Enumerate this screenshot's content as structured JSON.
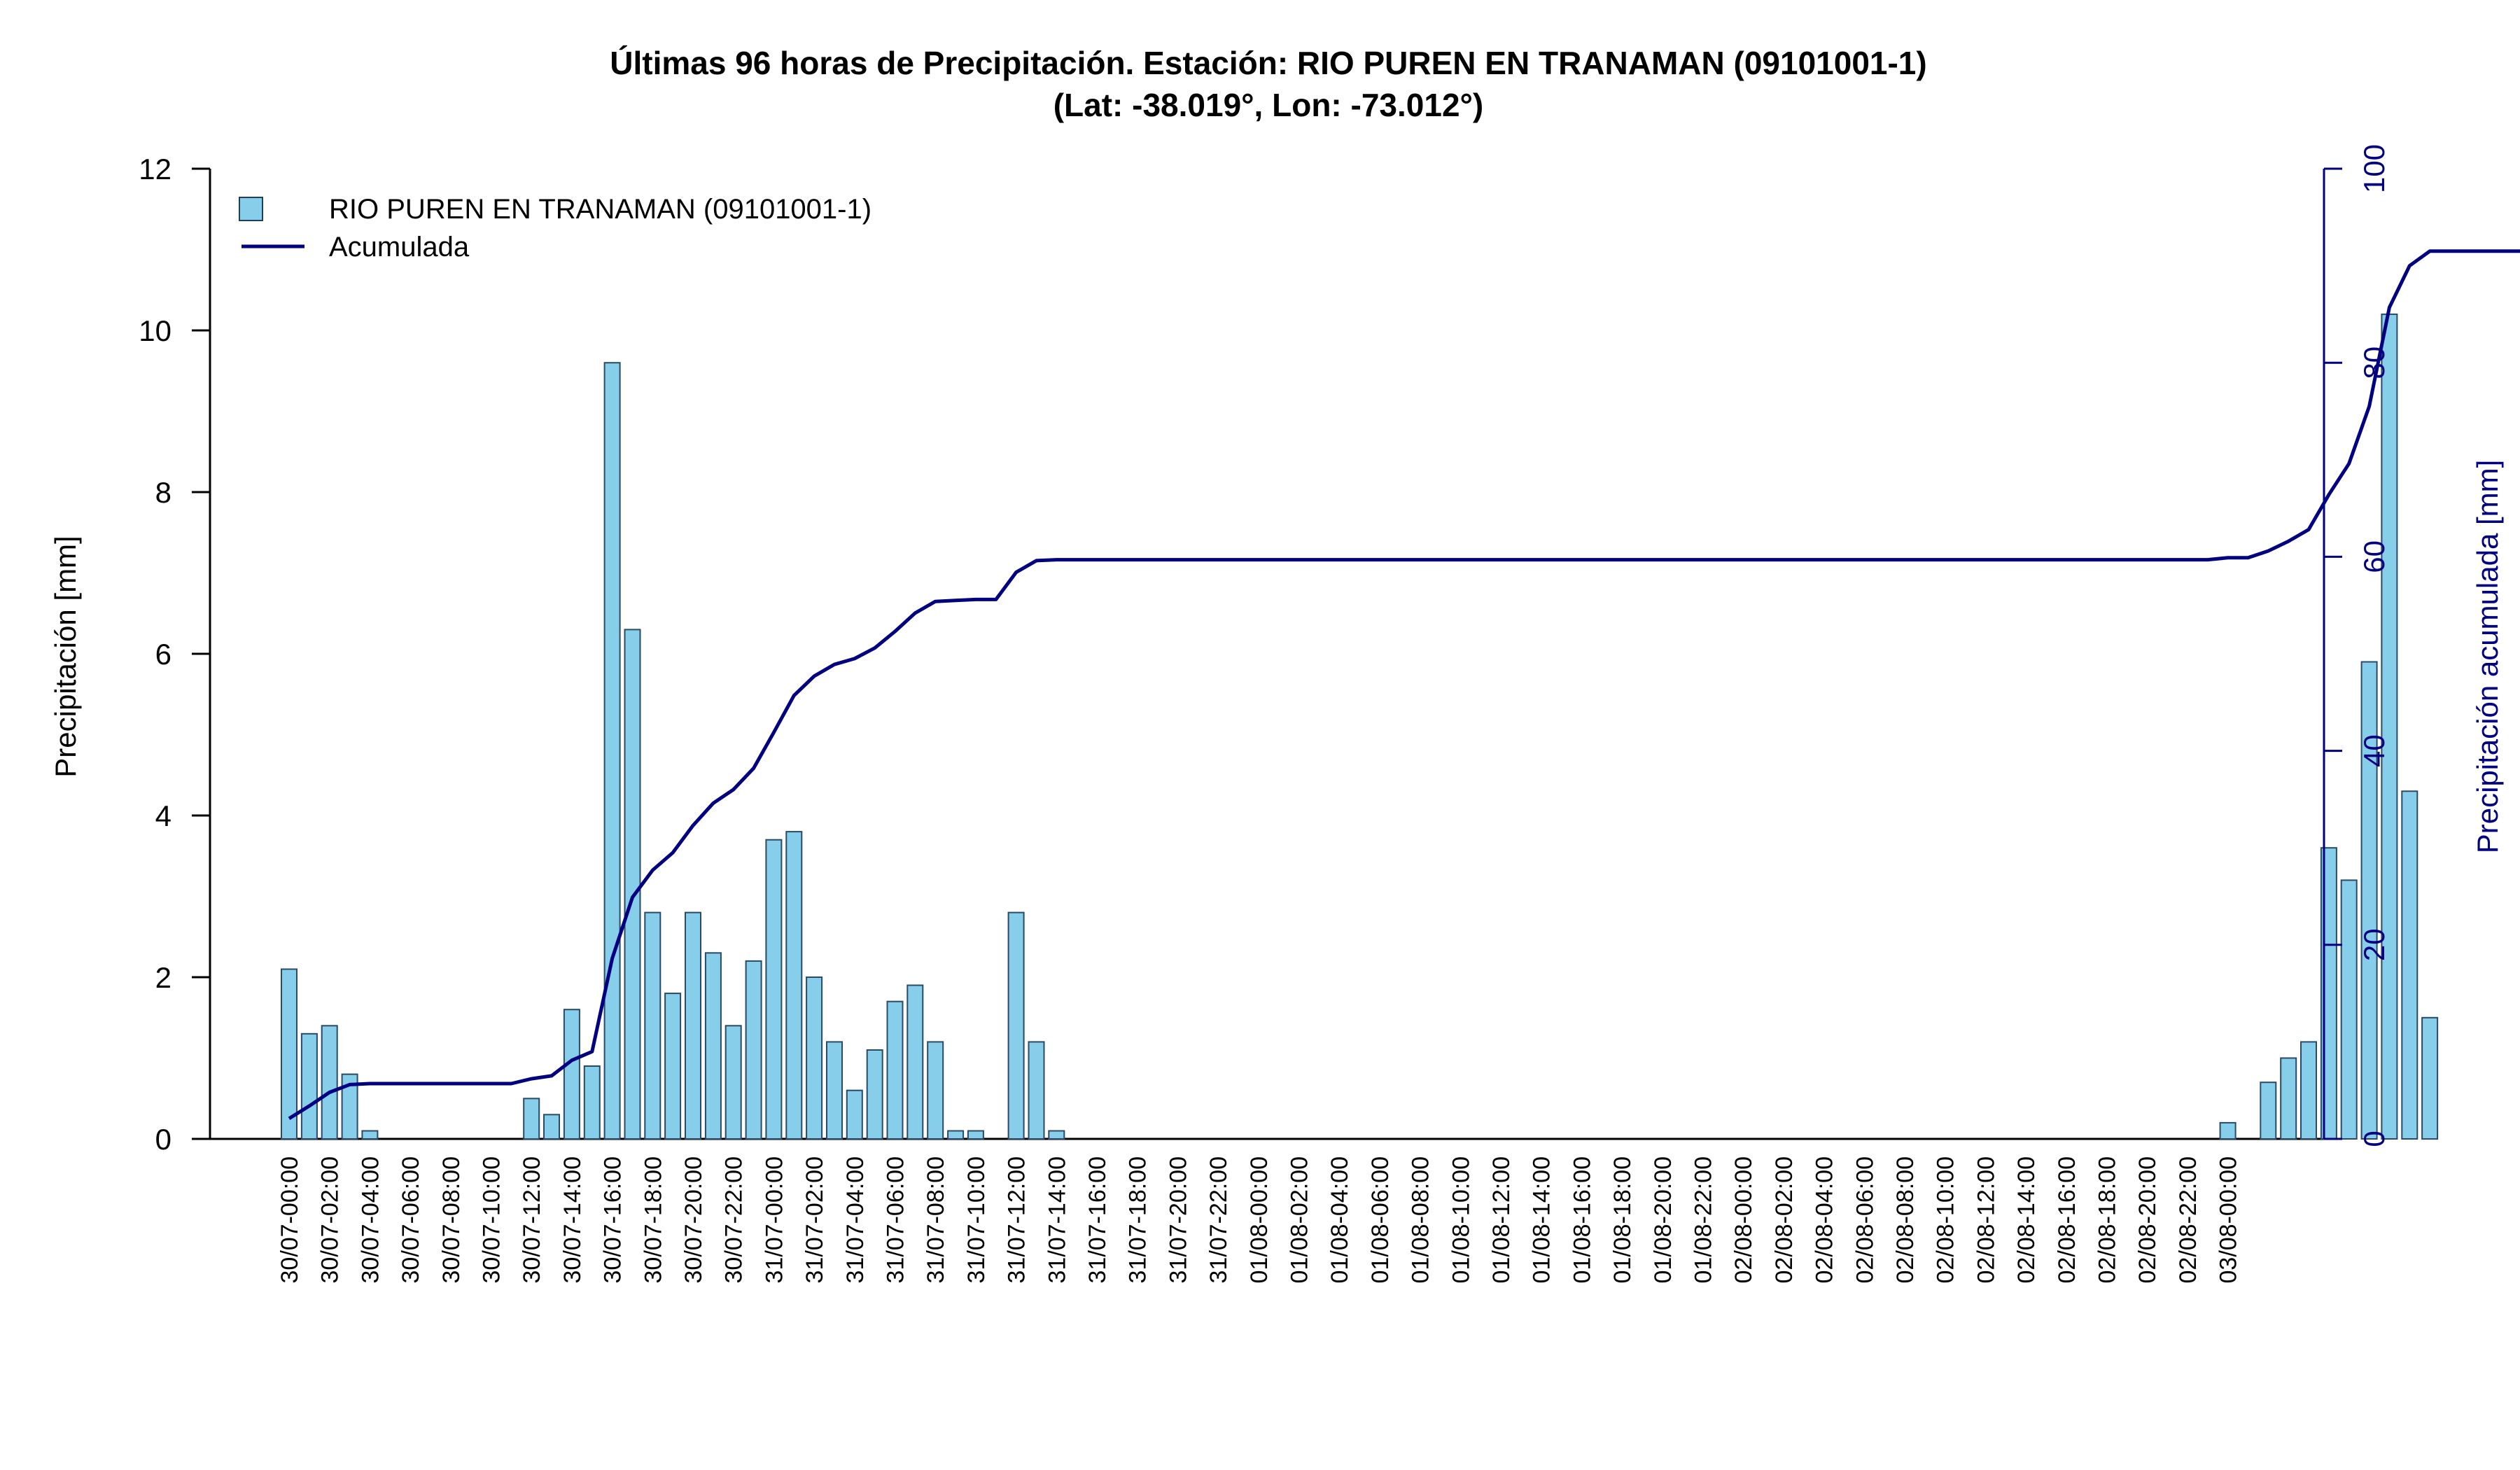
{
  "chart_data": {
    "type": "bar",
    "title": "Últimas 96 horas de Precipitación. Estación: RIO PUREN EN TRANAMAN (09101001-1)",
    "subtitle": "(Lat: -38.019°, Lon: -73.012°)",
    "ylabel": "Precipitación [mm]",
    "ylabel_right": "Precipitación acumulada [mm]",
    "ylim": [
      0,
      12
    ],
    "ylim_right": [
      0,
      100
    ],
    "yticks": [
      0,
      2,
      4,
      6,
      8,
      10,
      12
    ],
    "yticks_right": [
      0,
      20,
      40,
      60,
      80,
      100
    ],
    "grid": false,
    "legend_position": "top-left",
    "legend": [
      "RIO PUREN EN TRANAMAN (09101001-1)",
      "Acumulada"
    ],
    "x_tick_labels": [
      "30/07-00:00",
      "30/07-02:00",
      "30/07-04:00",
      "30/07-06:00",
      "30/07-08:00",
      "30/07-10:00",
      "30/07-12:00",
      "30/07-14:00",
      "30/07-16:00",
      "30/07-18:00",
      "30/07-20:00",
      "30/07-22:00",
      "31/07-00:00",
      "31/07-02:00",
      "31/07-04:00",
      "31/07-06:00",
      "31/07-08:00",
      "31/07-10:00",
      "31/07-12:00",
      "31/07-14:00",
      "31/07-16:00",
      "31/07-18:00",
      "31/07-20:00",
      "31/07-22:00",
      "01/08-00:00",
      "01/08-02:00",
      "01/08-04:00",
      "01/08-06:00",
      "01/08-08:00",
      "01/08-10:00",
      "01/08-12:00",
      "01/08-14:00",
      "01/08-16:00",
      "01/08-18:00",
      "01/08-20:00",
      "01/08-22:00",
      "02/08-00:00",
      "02/08-02:00",
      "02/08-04:00",
      "02/08-06:00",
      "02/08-08:00",
      "02/08-10:00",
      "02/08-12:00",
      "02/08-14:00",
      "02/08-16:00",
      "02/08-18:00",
      "02/08-20:00",
      "02/08-22:00",
      "03/08-00:00"
    ],
    "series": [
      {
        "name": "RIO PUREN EN TRANAMAN (09101001-1)",
        "type": "bar",
        "color": "#87CEEB",
        "values": [
          2.1,
          1.3,
          1.4,
          0.8,
          0.1,
          0,
          0,
          0,
          0,
          0,
          0,
          0,
          0.5,
          0.3,
          1.6,
          0.9,
          9.6,
          6.3,
          2.8,
          1.8,
          2.8,
          2.3,
          1.4,
          2.2,
          3.7,
          3.8,
          2.0,
          1.2,
          0.6,
          1.1,
          1.7,
          1.9,
          1.2,
          0.1,
          0.1,
          0,
          2.8,
          1.2,
          0.1,
          0,
          0,
          0,
          0,
          0,
          0,
          0,
          0,
          0,
          0,
          0,
          0,
          0,
          0,
          0,
          0,
          0,
          0,
          0,
          0,
          0,
          0,
          0,
          0,
          0,
          0,
          0,
          0,
          0,
          0,
          0,
          0,
          0,
          0,
          0,
          0,
          0,
          0,
          0,
          0,
          0,
          0,
          0,
          0,
          0,
          0,
          0,
          0,
          0,
          0,
          0,
          0,
          0,
          0,
          0,
          0,
          0,
          0.2,
          0,
          0.7,
          1.0,
          1.2,
          3.6,
          3.2,
          5.9,
          10.2,
          4.3,
          1.5,
          0,
          0,
          0,
          0,
          0,
          0,
          0,
          0,
          0,
          0,
          0,
          0,
          0,
          0,
          0,
          0,
          0,
          0,
          0,
          0,
          0,
          0,
          0,
          0,
          0,
          0,
          0,
          0,
          0,
          0,
          0,
          0,
          0,
          0,
          0,
          0,
          0,
          0,
          0,
          0,
          0,
          0,
          0,
          0,
          0,
          0,
          0,
          0,
          0,
          0,
          0,
          0,
          0,
          0,
          0,
          0,
          0,
          0,
          0,
          0,
          0,
          0,
          0,
          0,
          0,
          0,
          0,
          0,
          0,
          0,
          0,
          0,
          0,
          0,
          0,
          0,
          0,
          0,
          0,
          0,
          0,
          0,
          0,
          0,
          0,
          0
        ]
      },
      {
        "name": "Acumulada",
        "type": "line",
        "color": "#000080",
        "axis": "right",
        "values": [
          2.1,
          3.4,
          4.8,
          5.6,
          5.7,
          5.7,
          5.7,
          5.7,
          5.7,
          5.7,
          5.7,
          5.7,
          6.2,
          6.5,
          8.1,
          9.0,
          18.6,
          24.9,
          27.7,
          29.5,
          32.3,
          34.6,
          36.0,
          38.2,
          41.9,
          45.7,
          47.7,
          48.9,
          49.5,
          50.6,
          52.3,
          54.2,
          55.4,
          55.5,
          55.6,
          55.6,
          58.4,
          59.6,
          59.7,
          59.7,
          59.7,
          59.7,
          59.7,
          59.7,
          59.7,
          59.7,
          59.7,
          59.7,
          59.7,
          59.7,
          59.7,
          59.7,
          59.7,
          59.7,
          59.7,
          59.7,
          59.7,
          59.7,
          59.7,
          59.7,
          59.7,
          59.7,
          59.7,
          59.7,
          59.7,
          59.7,
          59.7,
          59.7,
          59.7,
          59.7,
          59.7,
          59.7,
          59.7,
          59.7,
          59.7,
          59.7,
          59.7,
          59.7,
          59.7,
          59.7,
          59.7,
          59.7,
          59.7,
          59.7,
          59.7,
          59.7,
          59.7,
          59.7,
          59.7,
          59.7,
          59.7,
          59.7,
          59.7,
          59.7,
          59.7,
          59.7,
          59.9,
          59.9,
          60.6,
          61.6,
          62.8,
          66.4,
          69.6,
          75.5,
          85.7,
          90.0,
          91.5,
          91.5,
          91.5,
          91.5,
          91.5,
          91.5,
          91.5,
          91.5,
          91.5,
          91.5,
          91.5,
          91.5,
          91.5,
          91.5,
          91.5,
          91.5,
          91.5,
          91.5,
          91.5,
          91.5,
          91.5,
          91.5,
          91.5,
          91.5,
          91.5,
          91.5,
          91.5,
          91.5,
          91.5,
          91.5,
          91.5,
          91.5,
          91.5,
          91.5,
          91.5,
          91.5,
          91.5,
          91.5,
          91.5,
          91.5,
          91.5,
          91.5,
          91.5,
          91.5,
          91.5,
          91.5,
          91.5,
          91.5,
          91.5,
          91.5,
          91.5,
          91.5,
          91.5,
          91.5,
          91.5,
          91.5,
          91.5,
          91.5,
          91.5,
          91.5,
          91.5,
          91.5,
          91.5,
          91.5,
          91.5,
          91.5,
          91.5,
          91.5,
          91.5,
          91.5,
          91.5,
          91.5,
          91.5,
          91.5,
          91.5,
          91.5,
          91.5,
          91.5,
          91.5,
          91.5,
          91.5,
          91.5,
          91.5,
          91.5
        ]
      }
    ]
  }
}
